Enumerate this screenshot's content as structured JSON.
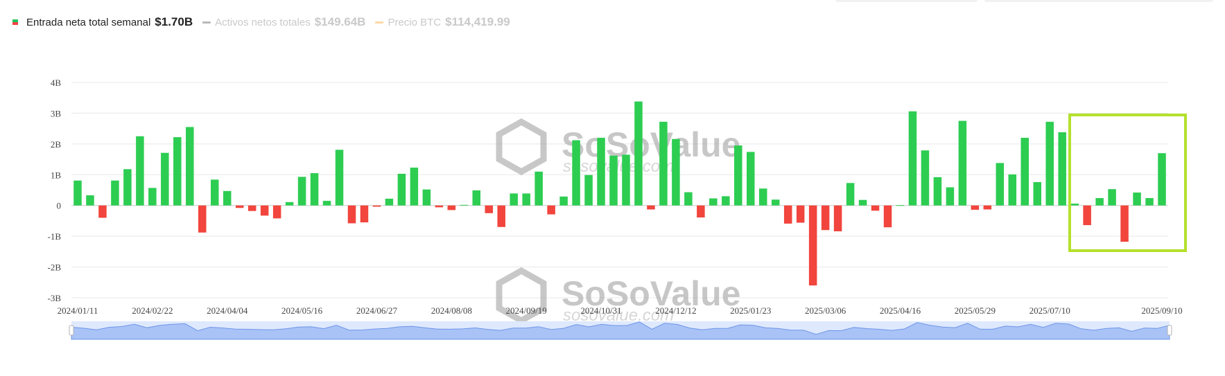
{
  "legend": {
    "net_flow": {
      "label": "Entrada neta total semanal",
      "value": "$1.70B"
    },
    "total_assets": {
      "label": "Activos netos totales",
      "value": "$149.64B"
    },
    "btc_price": {
      "label": "Precio BTC",
      "value": "$114,419.99"
    }
  },
  "watermark": {
    "brand": "SoSoValue",
    "url": "sosovalue.com"
  },
  "colors": {
    "inflow": "#2dcd52",
    "outflow": "#f1453d",
    "highlight": "#b5e02c",
    "assets_line": "#b9b9b9",
    "price_line": "#fbd9a6",
    "navigator": "#a9c3f7"
  },
  "chart_data": {
    "type": "bar",
    "unit": "B",
    "ylim": [
      -3,
      4
    ],
    "ytick_labels": [
      "4B",
      "3B",
      "2B",
      "1B",
      "0",
      "-1B",
      "-2B",
      "-3B"
    ],
    "ytick_values": [
      4,
      3,
      2,
      1,
      0,
      -1,
      -2,
      -3
    ],
    "xtick_labels": [
      "2024/01/11",
      "2024/02/22",
      "2024/04/04",
      "2024/05/16",
      "2024/06/27",
      "2024/08/08",
      "2024/09/19",
      "2024/10/31",
      "2024/12/12",
      "2025/01/23",
      "2025/03/06",
      "2025/04/16",
      "2025/05/29",
      "2025/07/10",
      "2025/09/10"
    ],
    "xtick_index": [
      0,
      6,
      12,
      18,
      24,
      30,
      36,
      42,
      48,
      54,
      60,
      66,
      72,
      78,
      87
    ],
    "values": [
      0.81,
      0.33,
      -0.4,
      0.81,
      1.18,
      2.25,
      0.57,
      1.71,
      2.22,
      2.55,
      -0.88,
      0.84,
      0.47,
      -0.08,
      -0.18,
      -0.33,
      -0.42,
      0.11,
      0.93,
      1.05,
      0.15,
      1.81,
      -0.58,
      -0.55,
      -0.04,
      0.22,
      1.03,
      1.23,
      0.52,
      -0.06,
      -0.15,
      0.02,
      0.49,
      -0.25,
      -0.7,
      0.39,
      0.39,
      1.1,
      -0.29,
      0.29,
      2.12,
      0.99,
      2.2,
      1.62,
      1.65,
      3.38,
      -0.13,
      2.72,
      2.16,
      0.43,
      -0.39,
      0.23,
      0.3,
      1.95,
      1.74,
      0.55,
      0.19,
      -0.59,
      -0.56,
      -2.6,
      -0.8,
      -0.84,
      0.73,
      0.18,
      -0.17,
      -0.71,
      0.01,
      3.06,
      1.79,
      0.92,
      0.59,
      2.75,
      -0.14,
      -0.13,
      1.38,
      1.01,
      2.2,
      0.76,
      2.72,
      2.38,
      0.06,
      -0.64,
      0.24,
      0.53,
      -1.18,
      0.42,
      0.24,
      1.7
    ]
  }
}
